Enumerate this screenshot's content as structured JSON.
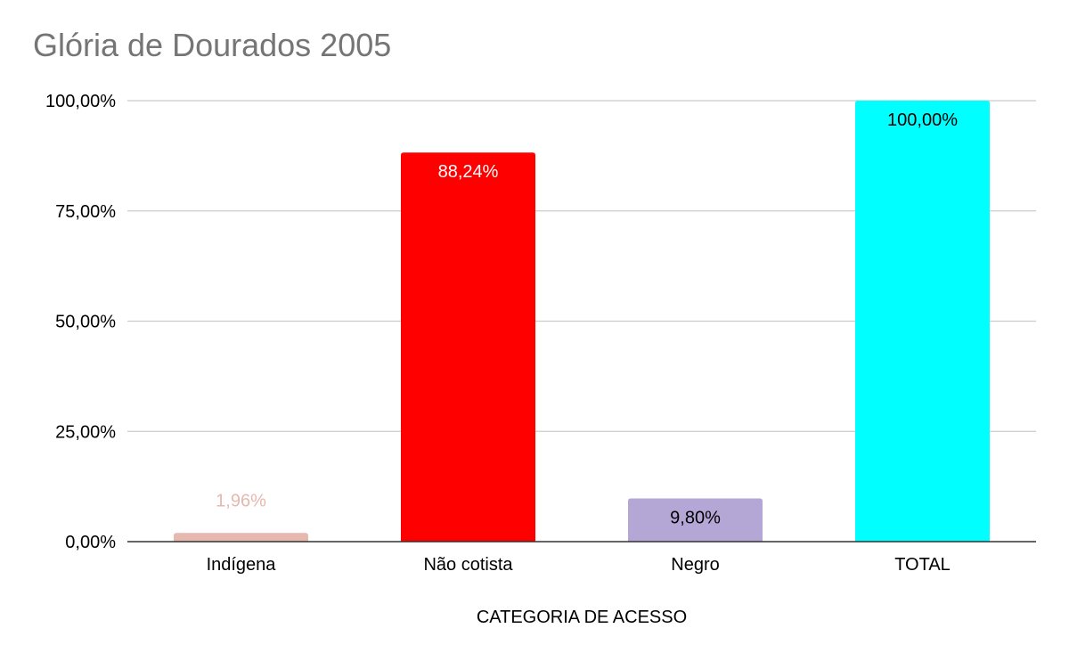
{
  "chart_data": {
    "type": "bar",
    "title": "Glória de Dourados 2005",
    "xlabel": "CATEGORIA DE ACESSO",
    "ylabel": "",
    "categories": [
      "Indígena",
      "Não cotista",
      "Negro",
      "TOTAL"
    ],
    "values": [
      1.96,
      88.24,
      9.8,
      100.0
    ],
    "data_labels": [
      "1,96%",
      "88,24%",
      "9,80%",
      "100,00%"
    ],
    "bar_colors": [
      "#e6b8af",
      "#ff0000",
      "#b4a7d6",
      "#00ffff"
    ],
    "label_colors": [
      "#e6b8af",
      "#ffffff",
      "#000000",
      "#000000"
    ],
    "ylim": [
      0,
      100
    ],
    "yticks": [
      0,
      25,
      50,
      75,
      100
    ],
    "ytick_labels": [
      "0,00%",
      "25,00%",
      "50,00%",
      "75,00%",
      "100,00%"
    ],
    "grid": true,
    "legend": "none"
  }
}
